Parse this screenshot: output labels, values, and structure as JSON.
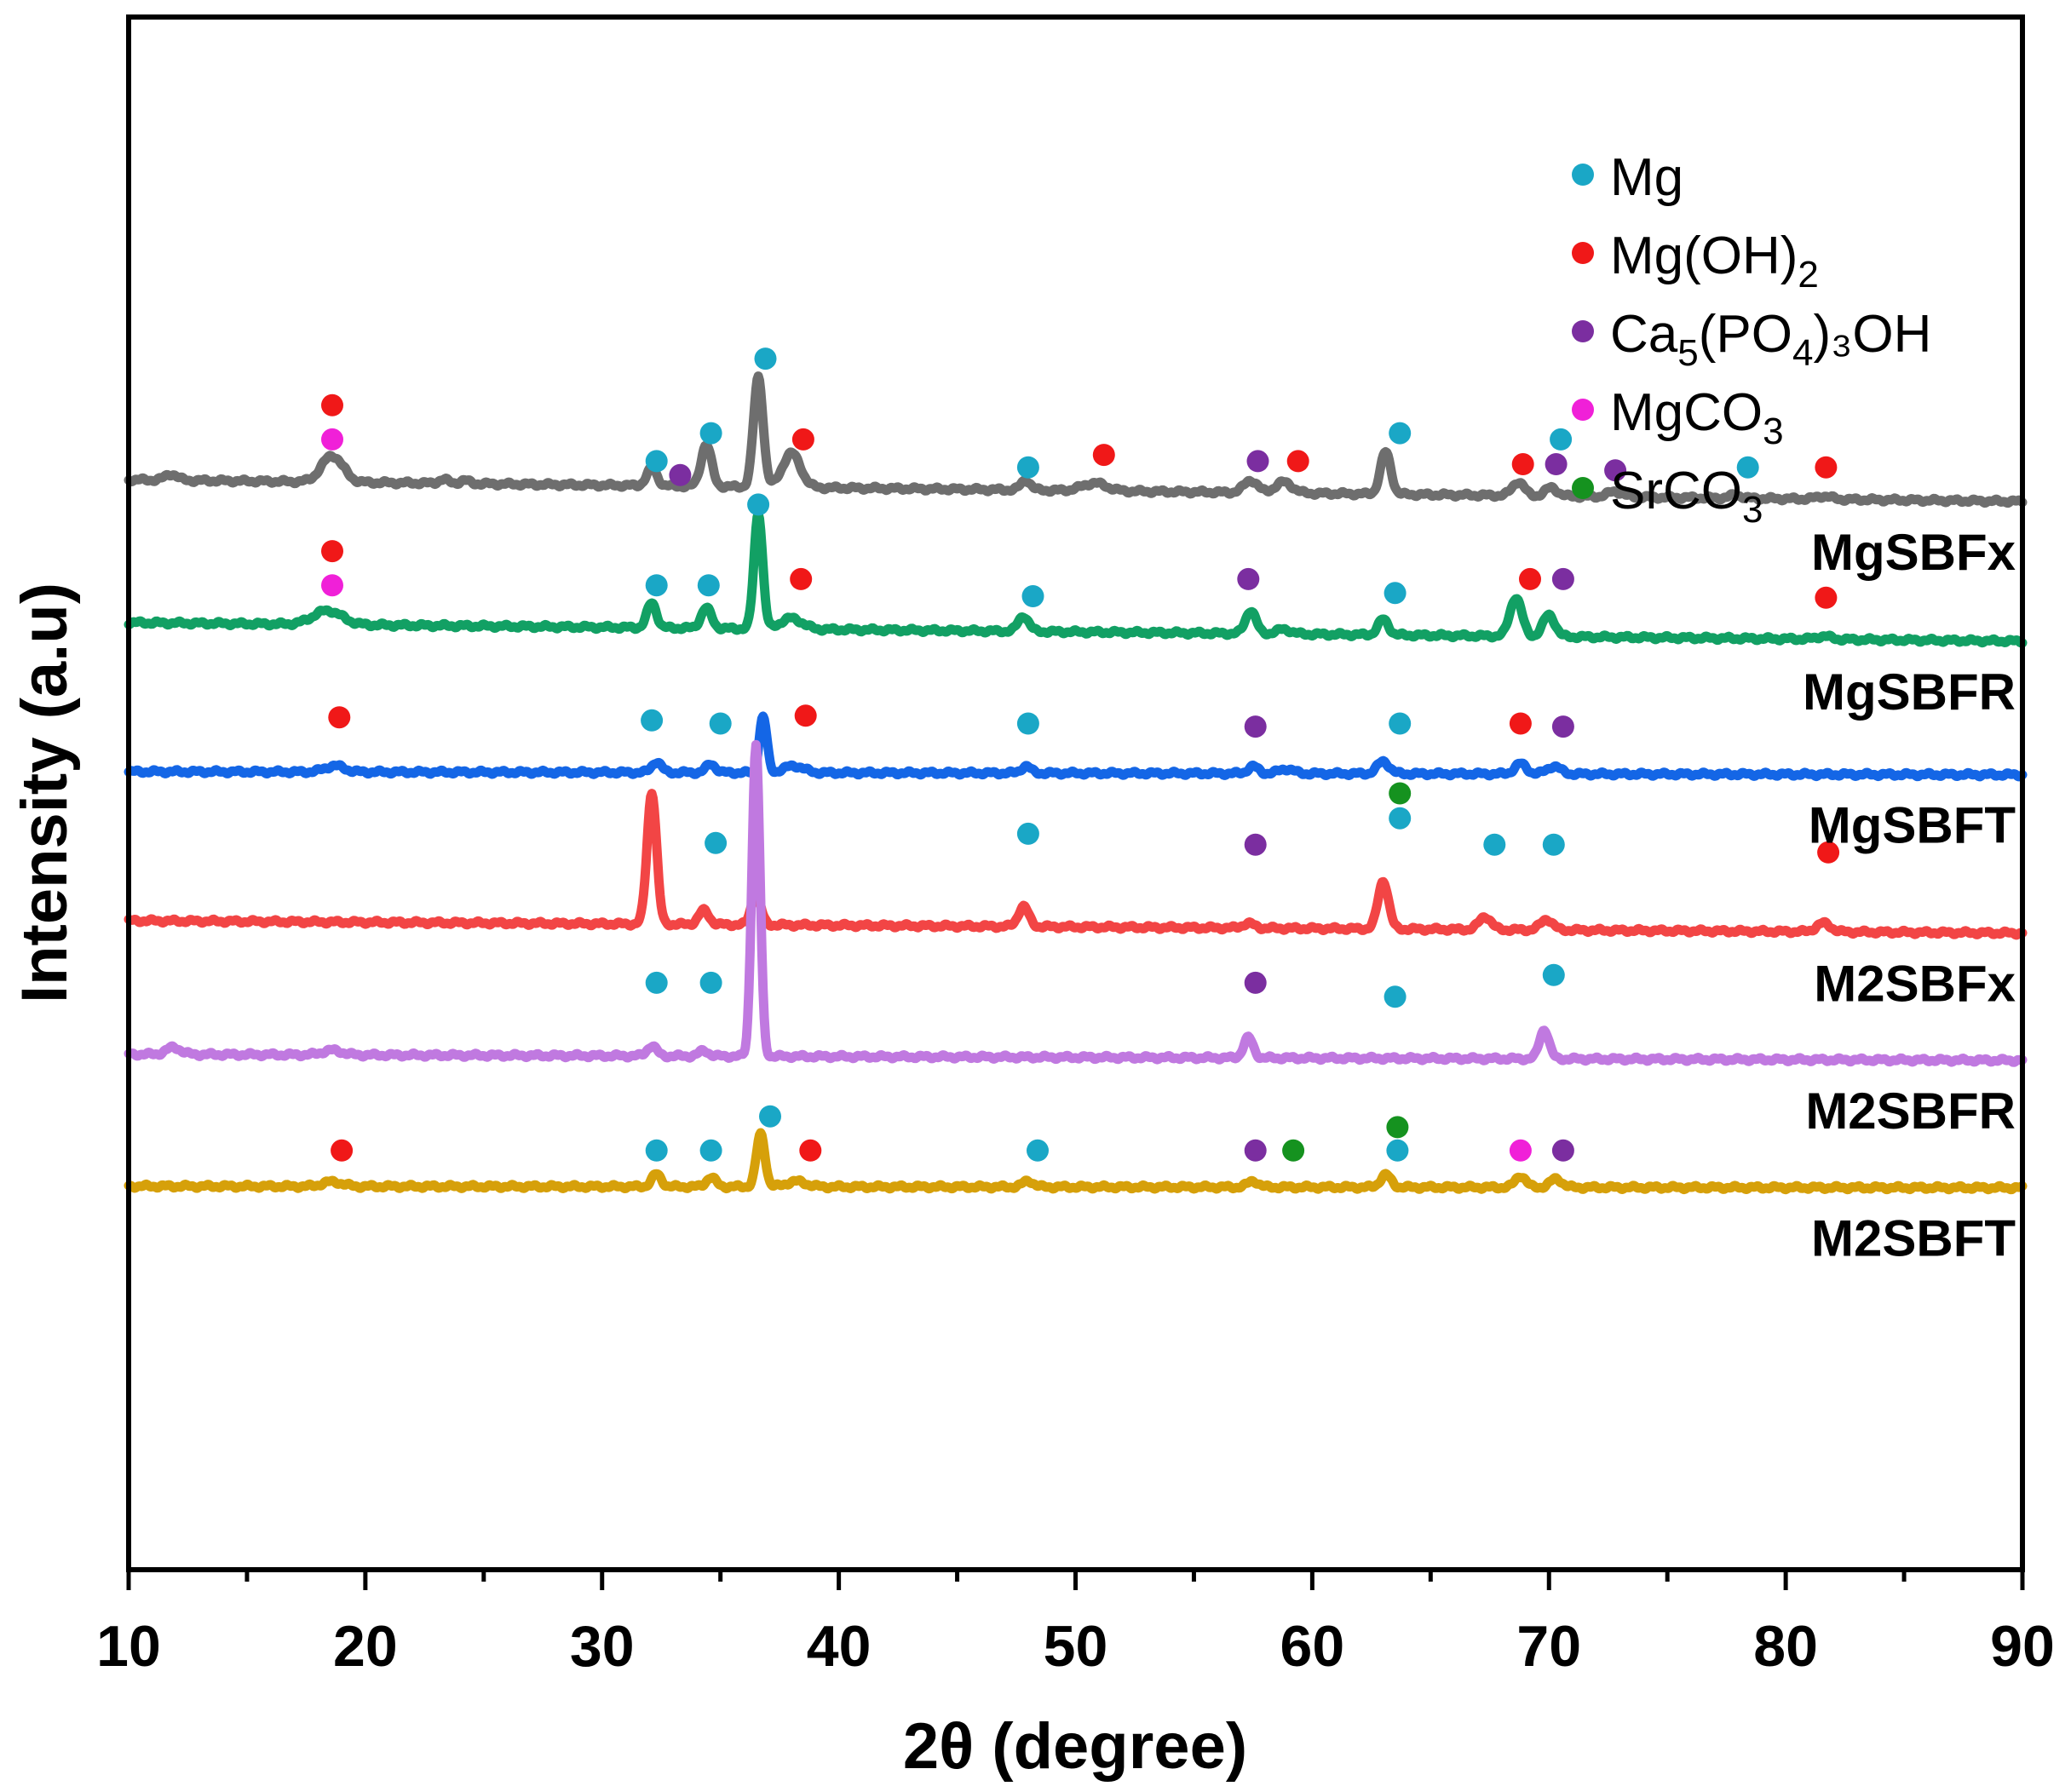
{
  "chart_data": {
    "type": "line",
    "title": "",
    "xlabel": "2θ (degree)",
    "ylabel": "Intensity (a.u)",
    "xlim": [
      10,
      90
    ],
    "ylim": [
      0,
      100
    ],
    "x_ticks": [
      "10",
      "20",
      "30",
      "40",
      "50",
      "60",
      "70",
      "80",
      "90"
    ],
    "phase_colors": {
      "Mg": "#1aa7c6",
      "MgOH2": "#f01818",
      "HAp": "#7b2ea0",
      "MgCO3": "#f020d8",
      "SrCO3": "#15921f"
    },
    "legend": [
      {
        "phase": "Mg",
        "base": "Mg",
        "sub": "",
        "mid": "",
        "sub2": "",
        "tail": "",
        "color": "#1aa7c6"
      },
      {
        "phase": "MgOH2",
        "base": "Mg(OH)",
        "sub": "2",
        "mid": "",
        "sub2": "",
        "tail": "",
        "color": "#f01818"
      },
      {
        "phase": "HAp",
        "base": "Ca",
        "sub": "5",
        "mid": "(PO",
        "sub2": "4",
        "tail": ")₃OH",
        "color": "#7b2ea0"
      },
      {
        "phase": "MgCO3",
        "base": "MgCO",
        "sub": "3",
        "mid": "",
        "sub2": "",
        "tail": "",
        "color": "#f020d8"
      },
      {
        "phase": "SrCO3",
        "base": "SrCO",
        "sub": "3",
        "mid": "",
        "sub2": "",
        "tail": "",
        "color": "#15921f"
      }
    ],
    "series": [
      {
        "name": "MgSBFx",
        "color": "#6e6e6e",
        "baseline": 70.2,
        "end_baseline": 68.8,
        "peaks": [
          {
            "x": 11.8,
            "h": 0.4,
            "w": 0.25
          },
          {
            "x": 18.6,
            "h": 1.7,
            "w": 0.45
          },
          {
            "x": 23.3,
            "h": 0.25,
            "w": 0.2
          },
          {
            "x": 24.2,
            "h": 0.2,
            "w": 0.2
          },
          {
            "x": 32.1,
            "h": 1.1,
            "w": 0.22
          },
          {
            "x": 34.4,
            "h": 2.7,
            "w": 0.22
          },
          {
            "x": 36.6,
            "h": 7.1,
            "w": 0.2
          },
          {
            "x": 38.0,
            "h": 2.2,
            "w": 0.38
          },
          {
            "x": 47.9,
            "h": 0.65,
            "w": 0.2
          },
          {
            "x": 50.8,
            "h": 0.5,
            "w": 0.5
          },
          {
            "x": 57.4,
            "h": 0.8,
            "w": 0.28
          },
          {
            "x": 58.8,
            "h": 0.7,
            "w": 0.35
          },
          {
            "x": 63.1,
            "h": 2.7,
            "w": 0.22
          },
          {
            "x": 68.7,
            "h": 0.9,
            "w": 0.25
          },
          {
            "x": 70.1,
            "h": 0.55,
            "w": 0.25
          },
          {
            "x": 72.8,
            "h": 0.35,
            "w": 0.3
          },
          {
            "x": 77.9,
            "h": 0.2,
            "w": 0.25
          },
          {
            "x": 81.6,
            "h": 0.2,
            "w": 0.3
          }
        ]
      },
      {
        "name": "MgSBFR",
        "color": "#12a064",
        "baseline": 61.0,
        "end_baseline": 59.8,
        "peaks": [
          {
            "x": 18.4,
            "h": 0.9,
            "w": 0.6
          },
          {
            "x": 32.1,
            "h": 1.6,
            "w": 0.2
          },
          {
            "x": 34.4,
            "h": 1.3,
            "w": 0.22
          },
          {
            "x": 36.6,
            "h": 7.5,
            "w": 0.18
          },
          {
            "x": 38.0,
            "h": 0.7,
            "w": 0.45
          },
          {
            "x": 47.8,
            "h": 1.0,
            "w": 0.22
          },
          {
            "x": 57.4,
            "h": 1.5,
            "w": 0.22
          },
          {
            "x": 58.8,
            "h": 0.3,
            "w": 0.3
          },
          {
            "x": 63.0,
            "h": 1.0,
            "w": 0.22
          },
          {
            "x": 68.6,
            "h": 2.5,
            "w": 0.25
          },
          {
            "x": 70.0,
            "h": 1.4,
            "w": 0.25
          },
          {
            "x": 81.6,
            "h": 0.2,
            "w": 0.3
          }
        ]
      },
      {
        "name": "MgSBFT",
        "color": "#1466e6",
        "baseline": 51.4,
        "end_baseline": 51.2,
        "peaks": [
          {
            "x": 18.7,
            "h": 0.4,
            "w": 0.4
          },
          {
            "x": 32.3,
            "h": 0.7,
            "w": 0.2
          },
          {
            "x": 34.6,
            "h": 0.55,
            "w": 0.2
          },
          {
            "x": 36.8,
            "h": 3.6,
            "w": 0.16
          },
          {
            "x": 38.1,
            "h": 0.45,
            "w": 0.4
          },
          {
            "x": 47.9,
            "h": 0.45,
            "w": 0.2
          },
          {
            "x": 57.5,
            "h": 0.45,
            "w": 0.22
          },
          {
            "x": 58.9,
            "h": 0.3,
            "w": 0.3
          },
          {
            "x": 63.0,
            "h": 0.8,
            "w": 0.25
          },
          {
            "x": 68.8,
            "h": 0.65,
            "w": 0.25
          },
          {
            "x": 70.2,
            "h": 0.5,
            "w": 0.28
          }
        ]
      },
      {
        "name": "M2SBFx",
        "color": "#f24545",
        "baseline": 41.8,
        "end_baseline": 41.0,
        "peaks": [
          {
            "x": 32.1,
            "h": 8.5,
            "w": 0.2
          },
          {
            "x": 34.3,
            "h": 0.9,
            "w": 0.22
          },
          {
            "x": 36.5,
            "h": 2.0,
            "w": 0.2
          },
          {
            "x": 47.8,
            "h": 1.3,
            "w": 0.22
          },
          {
            "x": 57.3,
            "h": 0.3,
            "w": 0.25
          },
          {
            "x": 63.0,
            "h": 3.1,
            "w": 0.22
          },
          {
            "x": 67.3,
            "h": 0.85,
            "w": 0.25
          },
          {
            "x": 69.9,
            "h": 0.7,
            "w": 0.25
          },
          {
            "x": 81.6,
            "h": 0.55,
            "w": 0.3
          }
        ]
      },
      {
        "name": "M2SBFR",
        "color": "#c079e0",
        "baseline": 33.2,
        "end_baseline": 32.8,
        "peaks": [
          {
            "x": 11.9,
            "h": 0.45,
            "w": 0.3
          },
          {
            "x": 18.6,
            "h": 0.3,
            "w": 0.4
          },
          {
            "x": 32.1,
            "h": 0.65,
            "w": 0.2
          },
          {
            "x": 34.3,
            "h": 0.35,
            "w": 0.2
          },
          {
            "x": 36.5,
            "h": 20.0,
            "w": 0.17
          },
          {
            "x": 57.3,
            "h": 1.3,
            "w": 0.2
          },
          {
            "x": 69.8,
            "h": 1.9,
            "w": 0.2
          }
        ]
      },
      {
        "name": "M2SBFT",
        "color": "#d6a00a",
        "baseline": 24.7,
        "end_baseline": 24.6,
        "peaks": [
          {
            "x": 18.6,
            "h": 0.3,
            "w": 0.4
          },
          {
            "x": 32.3,
            "h": 0.8,
            "w": 0.2
          },
          {
            "x": 34.6,
            "h": 0.6,
            "w": 0.2
          },
          {
            "x": 36.7,
            "h": 3.4,
            "w": 0.18
          },
          {
            "x": 38.2,
            "h": 0.35,
            "w": 0.4
          },
          {
            "x": 48.0,
            "h": 0.4,
            "w": 0.22
          },
          {
            "x": 57.5,
            "h": 0.4,
            "w": 0.22
          },
          {
            "x": 63.1,
            "h": 0.8,
            "w": 0.22
          },
          {
            "x": 68.8,
            "h": 0.75,
            "w": 0.22
          },
          {
            "x": 70.3,
            "h": 0.55,
            "w": 0.25
          }
        ]
      }
    ],
    "markers": [
      {
        "x": 18.6,
        "y": 75.0,
        "phase": "MgOH2"
      },
      {
        "x": 18.6,
        "y": 72.8,
        "phase": "MgCO3"
      },
      {
        "x": 32.3,
        "y": 71.4,
        "phase": "Mg"
      },
      {
        "x": 33.3,
        "y": 70.5,
        "phase": "HAp"
      },
      {
        "x": 34.6,
        "y": 73.2,
        "phase": "Mg"
      },
      {
        "x": 36.9,
        "y": 78.0,
        "phase": "Mg"
      },
      {
        "x": 38.5,
        "y": 72.8,
        "phase": "MgOH2"
      },
      {
        "x": 48.0,
        "y": 71.0,
        "phase": "Mg"
      },
      {
        "x": 51.2,
        "y": 71.8,
        "phase": "MgOH2"
      },
      {
        "x": 57.7,
        "y": 71.4,
        "phase": "HAp"
      },
      {
        "x": 59.4,
        "y": 71.4,
        "phase": "MgOH2"
      },
      {
        "x": 63.7,
        "y": 73.2,
        "phase": "Mg"
      },
      {
        "x": 68.9,
        "y": 71.2,
        "phase": "MgOH2"
      },
      {
        "x": 70.5,
        "y": 72.8,
        "phase": "Mg"
      },
      {
        "x": 70.3,
        "y": 71.2,
        "phase": "HAp"
      },
      {
        "x": 72.8,
        "y": 70.8,
        "phase": "HAp"
      },
      {
        "x": 78.4,
        "y": 71.0,
        "phase": "Mg"
      },
      {
        "x": 81.7,
        "y": 71.0,
        "phase": "MgOH2"
      },
      {
        "x": 18.6,
        "y": 65.6,
        "phase": "MgOH2"
      },
      {
        "x": 18.6,
        "y": 63.4,
        "phase": "MgCO3"
      },
      {
        "x": 32.3,
        "y": 63.4,
        "phase": "Mg"
      },
      {
        "x": 34.5,
        "y": 63.4,
        "phase": "Mg"
      },
      {
        "x": 36.6,
        "y": 68.6,
        "phase": "Mg"
      },
      {
        "x": 38.4,
        "y": 63.8,
        "phase": "MgOH2"
      },
      {
        "x": 48.2,
        "y": 62.7,
        "phase": "Mg"
      },
      {
        "x": 57.3,
        "y": 63.8,
        "phase": "HAp"
      },
      {
        "x": 63.5,
        "y": 62.9,
        "phase": "Mg"
      },
      {
        "x": 69.2,
        "y": 63.8,
        "phase": "MgOH2"
      },
      {
        "x": 70.6,
        "y": 63.8,
        "phase": "HAp"
      },
      {
        "x": 81.7,
        "y": 62.6,
        "phase": "MgOH2"
      },
      {
        "x": 18.9,
        "y": 54.9,
        "phase": "MgOH2"
      },
      {
        "x": 32.1,
        "y": 54.7,
        "phase": "Mg"
      },
      {
        "x": 35.0,
        "y": 54.5,
        "phase": "Mg"
      },
      {
        "x": 38.6,
        "y": 55.0,
        "phase": "MgOH2"
      },
      {
        "x": 48.0,
        "y": 54.5,
        "phase": "Mg"
      },
      {
        "x": 57.6,
        "y": 54.3,
        "phase": "HAp"
      },
      {
        "x": 63.7,
        "y": 54.5,
        "phase": "Mg"
      },
      {
        "x": 68.8,
        "y": 54.5,
        "phase": "MgOH2"
      },
      {
        "x": 70.6,
        "y": 54.3,
        "phase": "HAp"
      },
      {
        "x": 63.7,
        "y": 50.0,
        "phase": "SrCO3"
      },
      {
        "x": 63.7,
        "y": 48.4,
        "phase": "Mg"
      },
      {
        "x": 34.8,
        "y": 46.8,
        "phase": "Mg"
      },
      {
        "x": 48.0,
        "y": 47.4,
        "phase": "Mg"
      },
      {
        "x": 57.6,
        "y": 46.7,
        "phase": "HAp"
      },
      {
        "x": 67.7,
        "y": 46.7,
        "phase": "Mg"
      },
      {
        "x": 70.2,
        "y": 46.7,
        "phase": "Mg"
      },
      {
        "x": 81.8,
        "y": 46.2,
        "phase": "MgOH2"
      },
      {
        "x": 32.3,
        "y": 37.8,
        "phase": "Mg"
      },
      {
        "x": 34.6,
        "y": 37.8,
        "phase": "Mg"
      },
      {
        "x": 57.6,
        "y": 37.8,
        "phase": "HAp"
      },
      {
        "x": 63.5,
        "y": 36.9,
        "phase": "Mg"
      },
      {
        "x": 70.2,
        "y": 38.3,
        "phase": "Mg"
      },
      {
        "x": 19.0,
        "y": 27.0,
        "phase": "MgOH2"
      },
      {
        "x": 32.3,
        "y": 27.0,
        "phase": "Mg"
      },
      {
        "x": 34.6,
        "y": 27.0,
        "phase": "Mg"
      },
      {
        "x": 37.1,
        "y": 29.2,
        "phase": "Mg"
      },
      {
        "x": 38.8,
        "y": 27.0,
        "phase": "MgOH2"
      },
      {
        "x": 48.4,
        "y": 27.0,
        "phase": "Mg"
      },
      {
        "x": 57.6,
        "y": 27.0,
        "phase": "HAp"
      },
      {
        "x": 59.2,
        "y": 27.0,
        "phase": "SrCO3"
      },
      {
        "x": 63.6,
        "y": 28.5,
        "phase": "SrCO3"
      },
      {
        "x": 63.6,
        "y": 27.0,
        "phase": "Mg"
      },
      {
        "x": 68.8,
        "y": 27.0,
        "phase": "MgCO3"
      },
      {
        "x": 70.6,
        "y": 27.0,
        "phase": "HAp"
      }
    ]
  }
}
